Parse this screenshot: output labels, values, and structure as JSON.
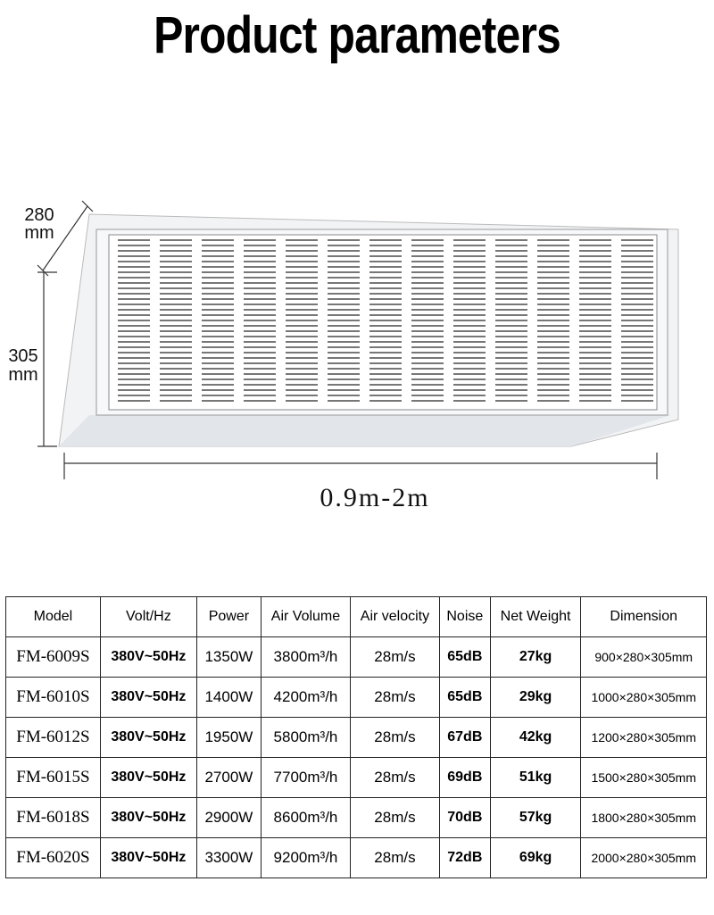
{
  "header": {
    "title": "Product parameters"
  },
  "drawing": {
    "depth_value": "280",
    "depth_unit": "mm",
    "height_value": "305",
    "height_unit": "mm",
    "length": "0.9m-2m"
  },
  "table": {
    "columns": [
      "Model",
      "Volt/Hz",
      "Power",
      "Air Volume",
      "Air velocity",
      "Noise",
      "Net Weight",
      "Dimension"
    ],
    "rows": [
      [
        "FM-6009S",
        "380V~50Hz",
        "1350W",
        "3800m³/h",
        "28m/s",
        "65dB",
        "27kg",
        "900×280×305mm"
      ],
      [
        "FM-6010S",
        "380V~50Hz",
        "1400W",
        "4200m³/h",
        "28m/s",
        "65dB",
        "29kg",
        "1000×280×305mm"
      ],
      [
        "FM-6012S",
        "380V~50Hz",
        "1950W",
        "5800m³/h",
        "28m/s",
        "67dB",
        "42kg",
        "1200×280×305mm"
      ],
      [
        "FM-6015S",
        "380V~50Hz",
        "2700W",
        "7700m³/h",
        "28m/s",
        "69dB",
        "51kg",
        "1500×280×305mm"
      ],
      [
        "FM-6018S",
        "380V~50Hz",
        "2900W",
        "8600m³/h",
        "28m/s",
        "70dB",
        "57kg",
        "1800×280×305mm"
      ],
      [
        "FM-6020S",
        "380V~50Hz",
        "3300W",
        "9200m³/h",
        "28m/s",
        "72dB",
        "69kg",
        "2000×280×305mm"
      ]
    ]
  }
}
